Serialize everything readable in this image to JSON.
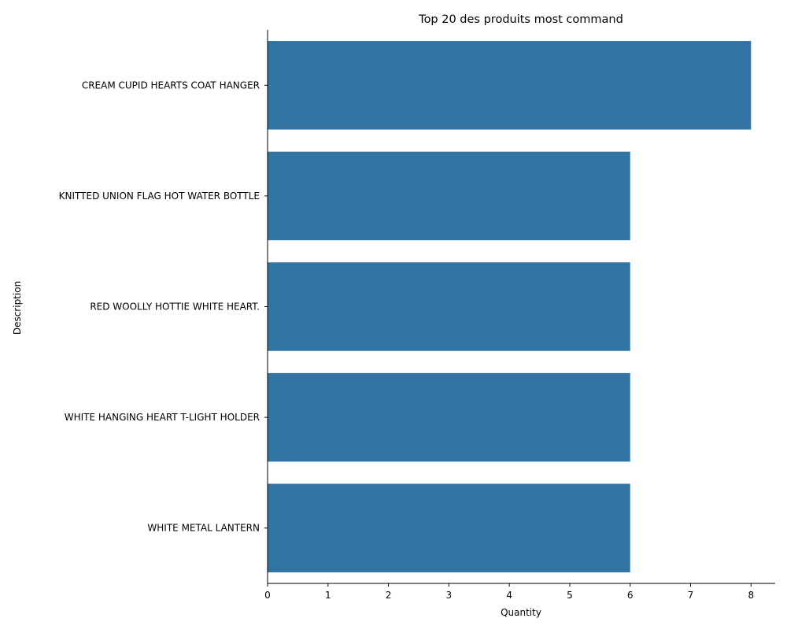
{
  "chart_data": {
    "type": "bar",
    "orientation": "horizontal",
    "title": "Top 20 des produits most command",
    "xlabel": "Quantity",
    "ylabel": "Description",
    "categories": [
      "CREAM CUPID HEARTS COAT HANGER",
      "KNITTED UNION FLAG HOT WATER BOTTLE",
      "RED WOOLLY HOTTIE WHITE HEART.",
      "WHITE HANGING HEART T-LIGHT HOLDER",
      "WHITE METAL LANTERN"
    ],
    "values": [
      8,
      6,
      6,
      6,
      6
    ],
    "xlim": [
      0,
      8.4
    ],
    "xticks": [
      0,
      1,
      2,
      3,
      4,
      5,
      6,
      7,
      8
    ],
    "grid": false,
    "bar_color": "#3274a1"
  }
}
